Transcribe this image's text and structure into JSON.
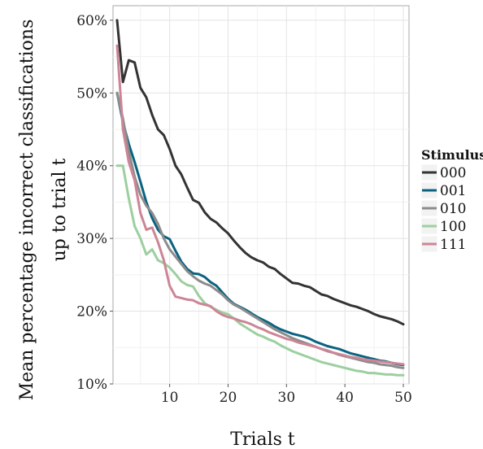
{
  "chart_data": {
    "type": "line",
    "xlabel": "Trials t",
    "ylabel_lines": [
      "Mean percentage incorrect classifications",
      "up to trial t"
    ],
    "xlim": [
      1,
      50
    ],
    "ylim": [
      10,
      62
    ],
    "xticks": [
      {
        "value": 10,
        "label": "10"
      },
      {
        "value": 20,
        "label": "20"
      },
      {
        "value": 30,
        "label": "30"
      },
      {
        "value": 40,
        "label": "40"
      },
      {
        "value": 50,
        "label": "50"
      }
    ],
    "yticks": [
      {
        "value": 10,
        "label": "10%"
      },
      {
        "value": 20,
        "label": "20%"
      },
      {
        "value": 30,
        "label": "30%"
      },
      {
        "value": 40,
        "label": "40%"
      },
      {
        "value": 50,
        "label": "50%"
      },
      {
        "value": 60,
        "label": "60%"
      }
    ],
    "grid": true,
    "legend": {
      "title": "Stimulus",
      "position": "right"
    },
    "series": [
      {
        "name": "000",
        "color": "#333333",
        "values": [
          60.0,
          51.5,
          54.5,
          54.2,
          50.7,
          49.4,
          47.0,
          45.0,
          44.2,
          42.3,
          40.0,
          38.8,
          37.0,
          35.3,
          34.9,
          33.6,
          32.7,
          32.2,
          31.4,
          30.7,
          29.7,
          28.8,
          28.0,
          27.4,
          27.0,
          26.7,
          26.1,
          25.8,
          25.1,
          24.5,
          23.9,
          23.8,
          23.5,
          23.3,
          22.8,
          22.3,
          22.1,
          21.7,
          21.4,
          21.1,
          20.8,
          20.6,
          20.3,
          20.0,
          19.6,
          19.3,
          19.1,
          18.9,
          18.6,
          18.2
        ]
      },
      {
        "name": "001",
        "color": "#0a6380",
        "values": [
          50.0,
          46.0,
          43.0,
          40.5,
          37.8,
          35.0,
          32.8,
          31.2,
          30.3,
          29.9,
          28.3,
          26.8,
          25.8,
          25.2,
          25.1,
          24.7,
          24.0,
          23.5,
          22.6,
          21.7,
          21.0,
          20.6,
          20.2,
          19.7,
          19.2,
          18.8,
          18.4,
          17.9,
          17.5,
          17.2,
          16.9,
          16.7,
          16.5,
          16.2,
          15.8,
          15.5,
          15.2,
          15.0,
          14.8,
          14.5,
          14.2,
          14.0,
          13.8,
          13.6,
          13.4,
          13.2,
          13.1,
          12.9,
          12.7,
          12.6
        ]
      },
      {
        "name": "010",
        "color": "#8c8c8c",
        "values": [
          50.0,
          46.5,
          42.0,
          38.5,
          36.0,
          34.5,
          33.5,
          32.0,
          30.0,
          28.5,
          27.5,
          26.5,
          25.5,
          24.8,
          24.2,
          23.8,
          23.5,
          22.9,
          22.3,
          21.5,
          20.9,
          20.5,
          20.0,
          19.5,
          19.0,
          18.5,
          18.0,
          17.5,
          17.1,
          16.7,
          16.3,
          16.0,
          15.7,
          15.4,
          15.1,
          14.8,
          14.5,
          14.3,
          14.0,
          13.8,
          13.6,
          13.4,
          13.2,
          13.0,
          12.9,
          12.7,
          12.6,
          12.5,
          12.3,
          12.2
        ]
      },
      {
        "name": "100",
        "color": "#9ccf9f",
        "values": [
          40.0,
          40.0,
          35.5,
          31.7,
          30.0,
          27.8,
          28.5,
          27.0,
          26.6,
          26.0,
          25.1,
          24.1,
          23.6,
          23.4,
          22.1,
          21.1,
          20.6,
          20.2,
          19.8,
          19.6,
          19.0,
          18.3,
          17.8,
          17.3,
          16.8,
          16.5,
          16.1,
          15.8,
          15.3,
          14.9,
          14.5,
          14.2,
          13.9,
          13.6,
          13.3,
          13.0,
          12.8,
          12.6,
          12.4,
          12.2,
          12.0,
          11.8,
          11.7,
          11.5,
          11.5,
          11.4,
          11.3,
          11.3,
          11.2,
          11.2
        ]
      },
      {
        "name": "111",
        "color": "#cc8596",
        "values": [
          56.5,
          45.0,
          40.5,
          38.0,
          33.5,
          31.2,
          31.5,
          29.5,
          27.0,
          23.5,
          22.0,
          21.8,
          21.6,
          21.5,
          21.1,
          20.9,
          20.7,
          20.0,
          19.5,
          19.2,
          19.0,
          18.7,
          18.5,
          18.2,
          17.8,
          17.5,
          17.1,
          16.8,
          16.5,
          16.2,
          16.0,
          15.7,
          15.5,
          15.3,
          15.1,
          14.8,
          14.6,
          14.3,
          14.1,
          13.9,
          13.7,
          13.6,
          13.4,
          13.3,
          13.2,
          13.1,
          13.0,
          12.9,
          12.8,
          12.7
        ]
      }
    ]
  }
}
